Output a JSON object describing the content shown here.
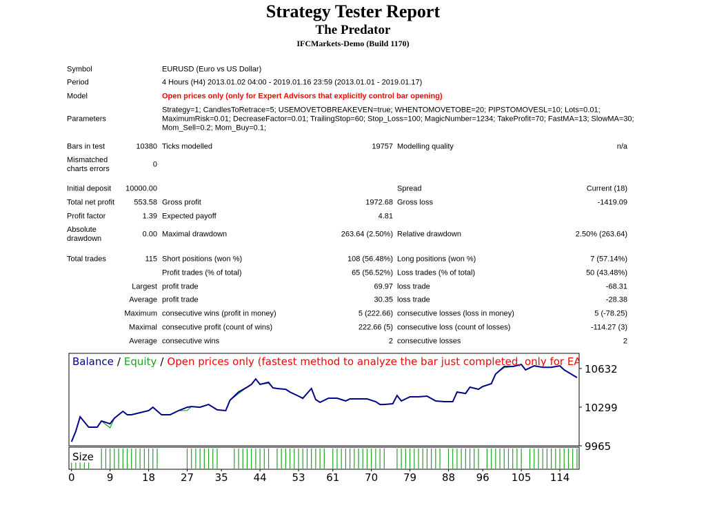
{
  "report": {
    "title": "Strategy Tester Report",
    "subtitle": "The Predator",
    "server": "IFCMarkets-Demo (Build 1170)",
    "info": [
      {
        "label": "Symbol",
        "value": "EURUSD (Euro vs US Dollar)"
      },
      {
        "label": "Period",
        "value": "4 Hours (H4) 2013.01.02 04:00 - 2019.01.16 23:59 (2013.01.01 - 2019.01.17)"
      },
      {
        "label": "Model",
        "value": "Open prices only (only for Expert Advisors that explicitly control bar opening)"
      }
    ],
    "parameters": {
      "label": "Parameters",
      "lines": [
        "Strategy=1; CandlesToRetrace=5; USEMOVETOBREAKEVEN=true; WHENTOMOVETOBE=20; PIPSTOMOVESL=10; Lots=0.01;",
        "MaximumRisk=0.01; DecreaseFactor=0.01; TrailingStop=60; Stop_Loss=100; MagicNumber=1234; TakeProfit=70; FastMA=13; SlowMA=30;",
        "Mom_Sell=0.2; Mom_Buy=0.1;"
      ]
    },
    "stats": [
      [
        "Bars in test",
        "10380",
        "Ticks modelled",
        "19757",
        "Modelling quality",
        "n/a"
      ],
      [
        "Mismatched charts errors",
        "0",
        null,
        null,
        null,
        null
      ],
      [
        "Initial deposit",
        "10000.00",
        null,
        null,
        "Spread",
        "Current (18)"
      ],
      [
        "Total net profit",
        "553.58",
        "Gross profit",
        "1972.68",
        "Gross loss",
        "-1419.09"
      ],
      [
        "Profit factor",
        "1.39",
        "Expected payoff",
        "4.81",
        null,
        null
      ],
      [
        "Absolute drawdown",
        "0.00",
        "Maximal drawdown",
        "263.64 (2.50%)",
        "Relative drawdown",
        "2.50% (263.64)"
      ],
      [
        "Total trades",
        "115",
        "Short positions (won %)",
        "108 (56.48%)",
        "Long positions (won %)",
        "7 (57.14%)"
      ],
      [
        null,
        null,
        "Profit trades (% of total)",
        "65 (56.52%)",
        "Loss trades (% of total)",
        "50 (43.48%)"
      ],
      [
        null,
        "Largest",
        "profit trade",
        "69.97",
        "loss trade",
        "-68.31"
      ],
      [
        null,
        "Average",
        "profit trade",
        "30.35",
        "loss trade",
        "-28.38"
      ],
      [
        null,
        "Maximum",
        "consecutive wins (profit in money)",
        "5 (222.66)",
        "consecutive losses (loss in money)",
        "5 (-78.25)"
      ],
      [
        null,
        "Maximal",
        "consecutive profit (count of wins)",
        "222.66 (5)",
        "consecutive loss (count of losses)",
        "-114.27 (3)"
      ],
      [
        null,
        "Average",
        "consecutive wins",
        "2",
        "consecutive losses",
        "2"
      ]
    ]
  },
  "chart_data": {
    "type": "line",
    "legend_separator": "/",
    "mode_label": "Open prices only (fastest method to analyze the bar just completed, only for EAs that",
    "mode_color": "#ff0000",
    "x": [
      0,
      1,
      2,
      4,
      6,
      7,
      9,
      10,
      12,
      13,
      14,
      16,
      18,
      19,
      21,
      23,
      25,
      27,
      28,
      30,
      32,
      34,
      36,
      37,
      39,
      41,
      42,
      43,
      44,
      46,
      47,
      48,
      50,
      51,
      53,
      54,
      56,
      57,
      58,
      60,
      62,
      64,
      65,
      67,
      69,
      71,
      72,
      73,
      75,
      76,
      77,
      79,
      81,
      83,
      85,
      87,
      89,
      90,
      92,
      93,
      95,
      96,
      98,
      99,
      101,
      103,
      105,
      106,
      108,
      110,
      112,
      114,
      115,
      118
    ],
    "series": [
      {
        "name": "Balance",
        "color": "#00008b",
        "values": [
          10000,
          10090,
          10215,
          10126,
          10126,
          10179,
          10155,
          10203,
          10263,
          10233,
          10233,
          10251,
          10269,
          10298,
          10233,
          10233,
          10269,
          10298,
          10304,
          10298,
          10322,
          10275,
          10269,
          10358,
          10429,
          10471,
          10495,
          10542,
          10495,
          10513,
          10465,
          10459,
          10453,
          10429,
          10394,
          10376,
          10459,
          10364,
          10340,
          10376,
          10376,
          10352,
          10370,
          10370,
          10370,
          10346,
          10322,
          10322,
          10328,
          10399,
          10352,
          10388,
          10388,
          10394,
          10352,
          10346,
          10346,
          10429,
          10417,
          10471,
          10453,
          10477,
          10501,
          10584,
          10649,
          10649,
          10667,
          10620,
          10655,
          10643,
          10643,
          10655,
          10620,
          10554
        ]
      },
      {
        "name": "Equity",
        "color": "#22a022",
        "values": [
          10000,
          10090,
          10215,
          10126,
          10126,
          10179,
          10120,
          10203,
          10263,
          10233,
          10233,
          10251,
          10269,
          10298,
          10233,
          10233,
          10269,
          10270,
          10304,
          10298,
          10322,
          10275,
          10269,
          10358,
          10415,
          10471,
          10495,
          10542,
          10495,
          10505,
          10465,
          10459,
          10453,
          10429,
          10394,
          10370,
          10459,
          10364,
          10340,
          10376,
          10376,
          10352,
          10370,
          10370,
          10370,
          10346,
          10322,
          10322,
          10328,
          10399,
          10352,
          10388,
          10388,
          10394,
          10352,
          10346,
          10346,
          10429,
          10417,
          10471,
          10453,
          10477,
          10501,
          10584,
          10640,
          10649,
          10667,
          10620,
          10655,
          10643,
          10643,
          10655,
          10620,
          10554
        ]
      }
    ],
    "xlim": [
      -0.6,
      118.5
    ],
    "xticks": [
      0,
      9,
      18,
      27,
      35,
      44,
      53,
      61,
      70,
      79,
      88,
      96,
      105,
      114
    ],
    "ylim": [
      9965,
      10763
    ],
    "yticks": [
      9965,
      10299,
      10632
    ],
    "size_panel": {
      "label": "Size",
      "color": "#22a022",
      "ylim": [
        0,
        0.01
      ],
      "x": [
        0,
        1,
        2,
        3,
        4,
        7,
        8,
        9,
        10,
        11,
        12,
        13,
        14,
        15,
        16,
        17,
        18,
        19,
        20,
        27,
        28,
        29,
        30,
        31,
        32,
        33,
        34,
        38,
        39,
        40,
        41,
        42,
        43,
        44,
        45,
        46,
        48,
        49,
        50,
        51,
        52,
        53,
        54,
        55,
        56,
        57,
        58,
        59,
        61,
        62,
        63,
        64,
        65,
        66,
        67,
        68,
        69,
        70,
        71,
        72,
        73,
        76,
        77,
        78,
        79,
        80,
        81,
        82,
        83,
        84,
        85,
        86,
        88,
        89,
        90,
        91,
        92,
        93,
        94,
        95,
        97,
        98,
        99,
        100,
        101,
        102,
        103,
        104,
        105,
        107,
        108,
        109,
        110,
        111,
        112,
        113,
        114,
        115,
        116,
        117,
        118
      ],
      "values": [
        0.003,
        0.003,
        0.003,
        0.003,
        0.003,
        0.01,
        0.01,
        0.01,
        0.01,
        0.01,
        0.01,
        0.01,
        0.01,
        0.01,
        0.01,
        0.01,
        0.01,
        0.01,
        0.01,
        0.01,
        0.01,
        0.01,
        0.01,
        0.01,
        0.01,
        0.01,
        0.01,
        0.01,
        0.01,
        0.01,
        0.01,
        0.01,
        0.01,
        0.01,
        0.01,
        0.01,
        0.01,
        0.01,
        0.01,
        0.01,
        0.01,
        0.01,
        0.01,
        0.01,
        0.01,
        0.01,
        0.01,
        0.01,
        0.01,
        0.01,
        0.01,
        0.01,
        0.01,
        0.01,
        0.01,
        0.01,
        0.01,
        0.01,
        0.01,
        0.01,
        0.01,
        0.01,
        0.01,
        0.01,
        0.01,
        0.01,
        0.01,
        0.01,
        0.01,
        0.01,
        0.01,
        0.01,
        0.01,
        0.01,
        0.01,
        0.01,
        0.01,
        0.01,
        0.01,
        0.01,
        0.01,
        0.01,
        0.01,
        0.01,
        0.01,
        0.01,
        0.01,
        0.01,
        0.01,
        0.01,
        0.01,
        0.01,
        0.01,
        0.01,
        0.01,
        0.01,
        0.01,
        0.01,
        0.01,
        0.01,
        0.01
      ]
    }
  }
}
